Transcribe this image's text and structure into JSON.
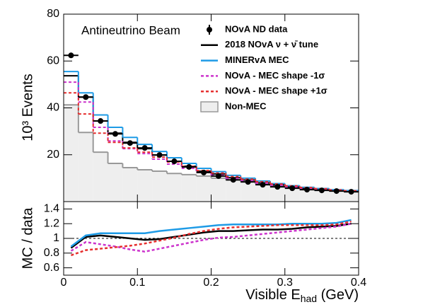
{
  "chart_data": [
    {
      "type": "histogram",
      "annotation": "Antineutrino Beam",
      "y_label": "10³ Events",
      "bins": [
        0,
        0.02,
        0.04,
        0.06,
        0.08,
        0.1,
        0.12,
        0.14,
        0.16,
        0.18,
        0.2,
        0.22,
        0.24,
        0.26,
        0.28,
        0.3,
        0.32,
        0.34,
        0.36,
        0.38,
        0.4
      ],
      "xlim": [
        0,
        0.4
      ],
      "ylim": [
        0,
        80
      ],
      "yticks": [
        20,
        40,
        60,
        80
      ],
      "series": [
        {
          "name": "NOvA ND data",
          "draw": "points",
          "color": "#000000",
          "values": [
            62.4,
            44.6,
            34.4,
            28.9,
            25.0,
            22.9,
            19.9,
            17.2,
            14.8,
            12.4,
            10.9,
            9.3,
            8.4,
            7.2,
            6.3,
            5.7,
            5.1,
            4.8,
            4.5,
            4.2
          ]
        },
        {
          "name": "2018 NOvA ν + ν̄ tune",
          "draw": "step",
          "color": "#000000",
          "values": [
            53.7,
            44.6,
            34.4,
            29.2,
            25.3,
            22.6,
            19.9,
            17.2,
            15.1,
            13.0,
            11.8,
            10.2,
            9.2,
            8.0,
            7.1,
            6.3,
            5.7,
            5.3,
            4.9,
            4.5
          ]
        },
        {
          "name": "MINERvA MEC",
          "draw": "step",
          "color": "#1e9be6",
          "values": [
            55.5,
            46.4,
            37.0,
            31.7,
            27.4,
            24.4,
            21.4,
            18.7,
            16.3,
            14.2,
            12.8,
            11.2,
            10.0,
            8.8,
            7.7,
            6.8,
            6.1,
            5.6,
            5.1,
            4.7
          ]
        },
        {
          "name": "NOvA - MEC shape -1σ",
          "draw": "dashed-step",
          "color": "#cc33cc",
          "values": [
            51.0,
            42.5,
            31.7,
            25.9,
            22.6,
            20.5,
            18.1,
            16.0,
            14.2,
            12.4,
            11.2,
            9.9,
            9.0,
            7.9,
            7.0,
            6.3,
            5.7,
            5.3,
            4.9,
            4.5
          ]
        },
        {
          "name": "NOvA - MEC shape +1σ",
          "draw": "dashed-step",
          "color": "#e62e2e",
          "values": [
            46.4,
            37.4,
            29.2,
            25.3,
            22.9,
            21.1,
            19.0,
            16.9,
            15.1,
            13.3,
            12.2,
            10.7,
            9.6,
            8.5,
            7.5,
            6.7,
            6.0,
            5.5,
            5.0,
            4.6
          ]
        },
        {
          "name": "Non-MEC",
          "draw": "filled-step",
          "color": "#999999",
          "fill": "#eeeeee",
          "values": [
            41.3,
            29.5,
            21.1,
            16.3,
            14.5,
            13.6,
            13.0,
            12.0,
            11.5,
            10.9,
            10.0,
            9.2,
            8.4,
            7.5,
            6.7,
            6.0,
            5.4,
            5.0,
            4.6,
            4.2
          ]
        }
      ]
    },
    {
      "type": "line",
      "y_label": "MC / data",
      "x_label": {
        "main": "Visible E",
        "sub": "had",
        "unit": " (GeV)"
      },
      "x": [
        0.01,
        0.03,
        0.05,
        0.07,
        0.09,
        0.11,
        0.13,
        0.15,
        0.17,
        0.19,
        0.21,
        0.23,
        0.25,
        0.27,
        0.29,
        0.31,
        0.33,
        0.35,
        0.37,
        0.39
      ],
      "xlim": [
        0,
        0.4
      ],
      "xticks": [
        0,
        0.1,
        0.2,
        0.3,
        0.4
      ],
      "ylim": [
        0.5,
        1.5
      ],
      "yticks": [
        0.6,
        0.8,
        1,
        1.2,
        1.4
      ],
      "reference_line": 1,
      "series": [
        {
          "name": "2018 NOvA ν + ν̄ tune",
          "draw": "line",
          "color": "#000000",
          "values": [
            0.87,
            1.02,
            1.04,
            1.02,
            1.0,
            0.98,
            0.99,
            1.02,
            1.05,
            1.08,
            1.1,
            1.1,
            1.11,
            1.12,
            1.12,
            1.13,
            1.15,
            1.16,
            1.17,
            1.2
          ]
        },
        {
          "name": "MINERvA MEC",
          "draw": "line",
          "color": "#1e9be6",
          "values": [
            0.89,
            1.04,
            1.07,
            1.07,
            1.07,
            1.07,
            1.1,
            1.12,
            1.14,
            1.16,
            1.18,
            1.19,
            1.19,
            1.19,
            1.19,
            1.2,
            1.2,
            1.2,
            1.21,
            1.25
          ]
        },
        {
          "name": "NOvA - MEC shape -1σ",
          "draw": "dashed",
          "color": "#cc33cc",
          "values": [
            0.83,
            0.95,
            0.92,
            0.89,
            0.85,
            0.82,
            0.86,
            0.9,
            0.94,
            0.98,
            1.01,
            1.02,
            1.04,
            1.06,
            1.08,
            1.1,
            1.12,
            1.14,
            1.16,
            1.2
          ]
        },
        {
          "name": "NOvA - MEC shape +1σ",
          "draw": "dashed",
          "color": "#e62e2e",
          "values": [
            0.77,
            0.84,
            0.86,
            0.88,
            0.9,
            0.93,
            0.97,
            1.01,
            1.06,
            1.1,
            1.13,
            1.15,
            1.16,
            1.17,
            1.18,
            1.18,
            1.18,
            1.18,
            1.19,
            1.23
          ]
        }
      ]
    }
  ]
}
